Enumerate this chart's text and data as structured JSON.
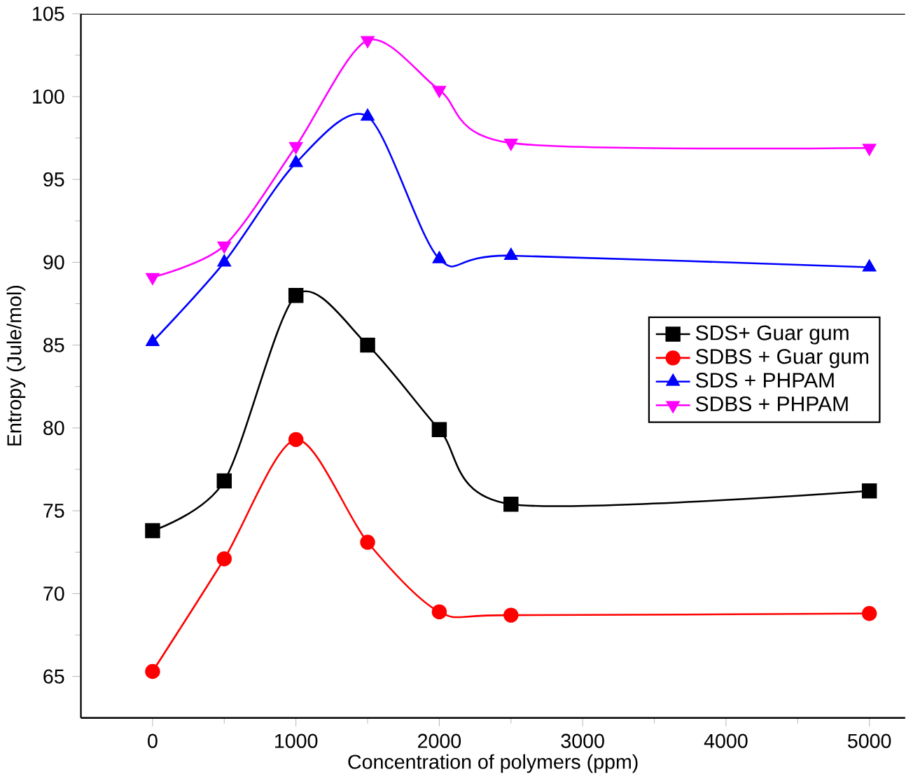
{
  "chart_data": {
    "type": "line",
    "xlabel": "Concentration of polymers (ppm)",
    "ylabel": "Entropy (Jule/mol)",
    "x": [
      0,
      500,
      1000,
      1500,
      2000,
      2500,
      5000
    ],
    "series": [
      {
        "name": "SDS+ Guar gum",
        "color": "#000000",
        "marker": "square",
        "values": [
          73.8,
          76.8,
          88.0,
          85.0,
          79.9,
          75.4,
          76.2
        ]
      },
      {
        "name": "SDBS + Guar gum",
        "color": "#ff0000",
        "marker": "circle",
        "values": [
          65.3,
          72.1,
          79.3,
          73.1,
          68.9,
          68.7,
          68.8
        ]
      },
      {
        "name": "SDS + PHPAM",
        "color": "#0000ff",
        "marker": "triangle",
        "values": [
          85.2,
          90.0,
          96.0,
          98.8,
          90.2,
          90.4,
          89.7
        ]
      },
      {
        "name": "SDBS + PHPAM",
        "color": "#ff00ff",
        "marker": "triangle-down",
        "values": [
          89.1,
          91.0,
          97.0,
          103.4,
          100.4,
          97.2,
          96.9
        ]
      }
    ],
    "xlim": [
      -500,
      5250
    ],
    "xticks": [
      0,
      1000,
      2000,
      3000,
      4000,
      5000
    ],
    "ylim": [
      62.5,
      105
    ],
    "yticks": [
      65,
      70,
      75,
      80,
      85,
      90,
      95,
      100,
      105
    ],
    "grid": false,
    "legend": "right",
    "line_style": "solid"
  }
}
